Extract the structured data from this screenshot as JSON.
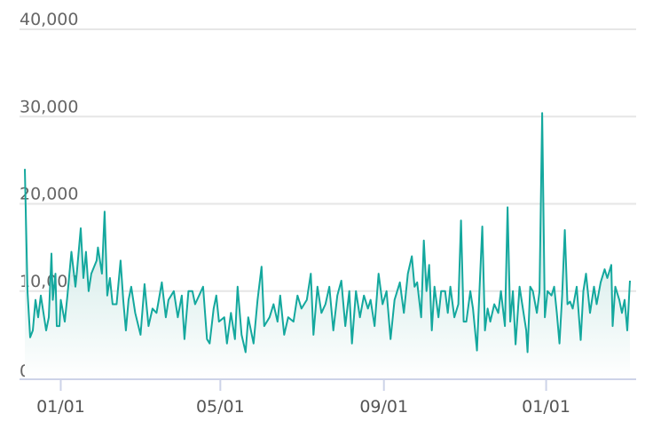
{
  "chart_data": {
    "type": "area",
    "title": "",
    "xlabel": "",
    "ylabel": "",
    "ylim": [
      0,
      40000
    ],
    "xlim": [
      "2020-12-05",
      "2022-03-05"
    ],
    "grid": true,
    "y_ticks": [
      "0",
      "10,000",
      "20,000",
      "30,000",
      "40,000"
    ],
    "y_tick_values": [
      0,
      10000,
      20000,
      30000,
      40000
    ],
    "x_ticks": [
      "01/01",
      "05/01",
      "09/01",
      "01/01"
    ],
    "x_tick_dates": [
      "2021-01-01",
      "2021-05-01",
      "2021-09-01",
      "2022-01-01"
    ],
    "colors": {
      "line": "#14a89e",
      "fill_top": "#a9d8d3",
      "fill_bottom": "#ffffff",
      "grid": "#e6e6e6",
      "axis": "#cdd3e8"
    },
    "series": [
      {
        "points": [
          [
            "2020-12-05",
            24000
          ],
          [
            "2020-12-07",
            10000
          ],
          [
            "2020-12-09",
            4700
          ],
          [
            "2020-12-11",
            5500
          ],
          [
            "2020-12-13",
            9000
          ],
          [
            "2020-12-15",
            7000
          ],
          [
            "2020-12-17",
            9500
          ],
          [
            "2020-12-20",
            6500
          ],
          [
            "2020-12-21",
            5500
          ],
          [
            "2020-12-23",
            7000
          ],
          [
            "2020-12-25",
            14300
          ],
          [
            "2020-12-26",
            9000
          ],
          [
            "2020-12-28",
            12000
          ],
          [
            "2020-12-29",
            6000
          ],
          [
            "2020-12-31",
            6000
          ],
          [
            "2021-01-01",
            9000
          ],
          [
            "2021-01-04",
            6500
          ],
          [
            "2021-01-06",
            9500
          ],
          [
            "2021-01-09",
            14500
          ],
          [
            "2021-01-12",
            10500
          ],
          [
            "2021-01-13",
            12000
          ],
          [
            "2021-01-16",
            17200
          ],
          [
            "2021-01-18",
            11500
          ],
          [
            "2021-01-20",
            14500
          ],
          [
            "2021-01-22",
            10000
          ],
          [
            "2021-01-24",
            12000
          ],
          [
            "2021-01-28",
            13500
          ],
          [
            "2021-01-29",
            15000
          ],
          [
            "2021-02-01",
            12000
          ],
          [
            "2021-02-03",
            19100
          ],
          [
            "2021-02-05",
            9500
          ],
          [
            "2021-02-07",
            11500
          ],
          [
            "2021-02-09",
            8500
          ],
          [
            "2021-02-12",
            8500
          ],
          [
            "2021-02-15",
            13500
          ],
          [
            "2021-02-17",
            9000
          ],
          [
            "2021-02-19",
            5500
          ],
          [
            "2021-02-21",
            9000
          ],
          [
            "2021-02-23",
            10500
          ],
          [
            "2021-02-26",
            7500
          ],
          [
            "2021-03-02",
            5000
          ],
          [
            "2021-03-05",
            10800
          ],
          [
            "2021-03-08",
            6000
          ],
          [
            "2021-03-11",
            8000
          ],
          [
            "2021-03-14",
            7500
          ],
          [
            "2021-03-18",
            11000
          ],
          [
            "2021-03-21",
            7000
          ],
          [
            "2021-03-23",
            9000
          ],
          [
            "2021-03-27",
            10000
          ],
          [
            "2021-03-30",
            7000
          ],
          [
            "2021-04-02",
            9500
          ],
          [
            "2021-04-04",
            4500
          ],
          [
            "2021-04-07",
            10000
          ],
          [
            "2021-04-10",
            10000
          ],
          [
            "2021-04-12",
            8500
          ],
          [
            "2021-04-15",
            9500
          ],
          [
            "2021-04-18",
            10500
          ],
          [
            "2021-04-21",
            4500
          ],
          [
            "2021-04-23",
            4000
          ],
          [
            "2021-04-26",
            8000
          ],
          [
            "2021-04-28",
            9500
          ],
          [
            "2021-04-30",
            6500
          ],
          [
            "2021-05-04",
            7000
          ],
          [
            "2021-05-06",
            4000
          ],
          [
            "2021-05-09",
            7500
          ],
          [
            "2021-05-12",
            4500
          ],
          [
            "2021-05-14",
            10500
          ],
          [
            "2021-05-17",
            5000
          ],
          [
            "2021-05-20",
            3000
          ],
          [
            "2021-05-22",
            7000
          ],
          [
            "2021-05-26",
            4000
          ],
          [
            "2021-05-29",
            9000
          ],
          [
            "2021-06-01",
            12800
          ],
          [
            "2021-06-03",
            6000
          ],
          [
            "2021-06-07",
            7000
          ],
          [
            "2021-06-10",
            8500
          ],
          [
            "2021-06-13",
            6500
          ],
          [
            "2021-06-15",
            9500
          ],
          [
            "2021-06-18",
            5000
          ],
          [
            "2021-06-21",
            7000
          ],
          [
            "2021-06-25",
            6500
          ],
          [
            "2021-06-28",
            9500
          ],
          [
            "2021-07-01",
            8000
          ],
          [
            "2021-07-05",
            9000
          ],
          [
            "2021-07-08",
            12000
          ],
          [
            "2021-07-10",
            5000
          ],
          [
            "2021-07-13",
            10500
          ],
          [
            "2021-07-16",
            7500
          ],
          [
            "2021-07-19",
            8500
          ],
          [
            "2021-07-22",
            10500
          ],
          [
            "2021-07-25",
            5500
          ],
          [
            "2021-07-28",
            9500
          ],
          [
            "2021-07-31",
            11200
          ],
          [
            "2021-08-03",
            6000
          ],
          [
            "2021-08-06",
            10000
          ],
          [
            "2021-08-08",
            4000
          ],
          [
            "2021-08-11",
            10000
          ],
          [
            "2021-08-14",
            7000
          ],
          [
            "2021-08-17",
            9500
          ],
          [
            "2021-08-20",
            8000
          ],
          [
            "2021-08-22",
            9000
          ],
          [
            "2021-08-25",
            6000
          ],
          [
            "2021-08-28",
            12000
          ],
          [
            "2021-08-31",
            8500
          ],
          [
            "2021-09-03",
            10000
          ],
          [
            "2021-09-06",
            4500
          ],
          [
            "2021-09-09",
            9000
          ],
          [
            "2021-09-13",
            11000
          ],
          [
            "2021-09-16",
            7500
          ],
          [
            "2021-09-19",
            12000
          ],
          [
            "2021-09-22",
            14000
          ],
          [
            "2021-09-24",
            10500
          ],
          [
            "2021-09-26",
            11000
          ],
          [
            "2021-09-29",
            7000
          ],
          [
            "2021-10-01",
            15800
          ],
          [
            "2021-10-03",
            10000
          ],
          [
            "2021-10-05",
            13000
          ],
          [
            "2021-10-07",
            5500
          ],
          [
            "2021-10-09",
            10500
          ],
          [
            "2021-10-12",
            7000
          ],
          [
            "2021-10-14",
            10000
          ],
          [
            "2021-10-17",
            10000
          ],
          [
            "2021-10-19",
            7500
          ],
          [
            "2021-10-21",
            10500
          ],
          [
            "2021-10-24",
            7000
          ],
          [
            "2021-10-27",
            8500
          ],
          [
            "2021-10-29",
            18100
          ],
          [
            "2021-10-31",
            6500
          ],
          [
            "2021-11-02",
            6500
          ],
          [
            "2021-11-05",
            10000
          ],
          [
            "2021-11-07",
            8000
          ],
          [
            "2021-11-10",
            3200
          ],
          [
            "2021-11-12",
            10500
          ],
          [
            "2021-11-14",
            17400
          ],
          [
            "2021-11-16",
            5500
          ],
          [
            "2021-11-18",
            8000
          ],
          [
            "2021-11-20",
            6500
          ],
          [
            "2021-11-23",
            8500
          ],
          [
            "2021-11-26",
            7500
          ],
          [
            "2021-11-28",
            10000
          ],
          [
            "2021-12-01",
            6000
          ],
          [
            "2021-12-03",
            19600
          ],
          [
            "2021-12-05",
            6500
          ],
          [
            "2021-12-07",
            10000
          ],
          [
            "2021-12-09",
            3900
          ],
          [
            "2021-12-12",
            10500
          ],
          [
            "2021-12-15",
            7500
          ],
          [
            "2021-12-17",
            5500
          ],
          [
            "2021-12-18",
            3000
          ],
          [
            "2021-12-20",
            10500
          ],
          [
            "2021-12-22",
            10000
          ],
          [
            "2021-12-25",
            7500
          ],
          [
            "2021-12-27",
            10000
          ],
          [
            "2021-12-29",
            30400
          ],
          [
            "2021-12-31",
            7000
          ],
          [
            "2022-01-02",
            10000
          ],
          [
            "2022-01-05",
            9500
          ],
          [
            "2022-01-07",
            10500
          ],
          [
            "2022-01-09",
            7500
          ],
          [
            "2022-01-11",
            4000
          ],
          [
            "2022-01-13",
            9500
          ],
          [
            "2022-01-15",
            17000
          ],
          [
            "2022-01-17",
            8500
          ],
          [
            "2022-01-19",
            8800
          ],
          [
            "2022-01-21",
            8000
          ],
          [
            "2022-01-24",
            10500
          ],
          [
            "2022-01-27",
            4400
          ],
          [
            "2022-01-29",
            10000
          ],
          [
            "2022-01-31",
            12000
          ],
          [
            "2022-02-03",
            7500
          ],
          [
            "2022-02-06",
            10500
          ],
          [
            "2022-02-08",
            8500
          ],
          [
            "2022-02-11",
            11000
          ],
          [
            "2022-02-14",
            12500
          ],
          [
            "2022-02-16",
            11500
          ],
          [
            "2022-02-19",
            13000
          ],
          [
            "2022-02-20",
            6000
          ],
          [
            "2022-02-22",
            10500
          ],
          [
            "2022-02-25",
            9000
          ],
          [
            "2022-02-27",
            7500
          ],
          [
            "2022-03-01",
            9000
          ],
          [
            "2022-03-03",
            5500
          ],
          [
            "2022-03-05",
            11200
          ]
        ]
      }
    ]
  }
}
